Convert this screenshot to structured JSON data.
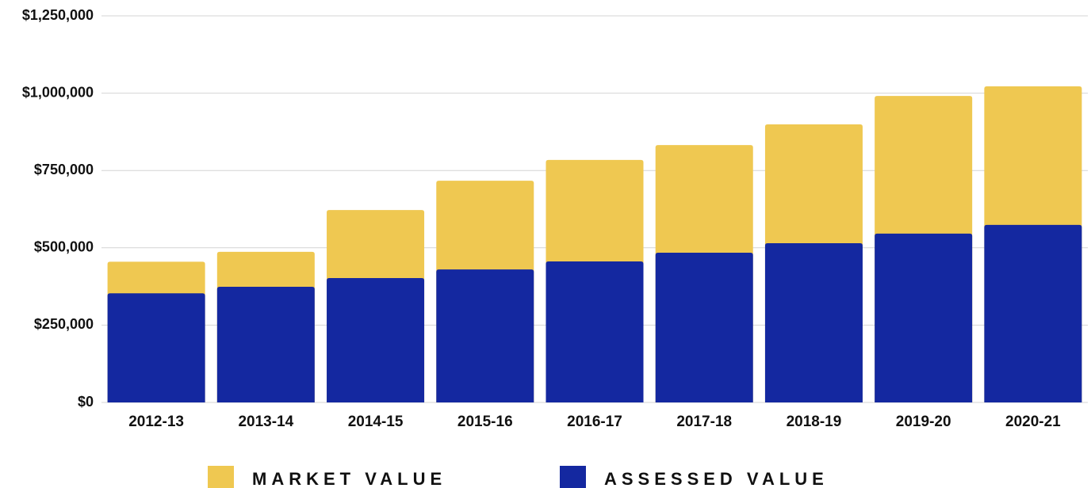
{
  "chart_data": {
    "type": "bar",
    "overlap": true,
    "categories": [
      "2012-13",
      "2013-14",
      "2014-15",
      "2015-16",
      "2016-17",
      "2017-18",
      "2018-19",
      "2019-20",
      "2020-21"
    ],
    "series": [
      {
        "name": "MARKET VALUE",
        "color": "#efc851",
        "values": [
          455000,
          487000,
          622000,
          717000,
          784000,
          832000,
          899000,
          991000,
          1022000
        ]
      },
      {
        "name": "ASSESSED VALUE",
        "color": "#1428a0",
        "values": [
          353000,
          374000,
          402000,
          430000,
          456000,
          484000,
          515000,
          546000,
          574000
        ]
      }
    ],
    "ylim": [
      0,
      1250000
    ],
    "yticks": [
      {
        "value": 0,
        "label": "$0"
      },
      {
        "value": 250000,
        "label": "$250,000"
      },
      {
        "value": 500000,
        "label": "$500,000"
      },
      {
        "value": 750000,
        "label": "$750,000"
      },
      {
        "value": 1000000,
        "label": "$1,000,000"
      },
      {
        "value": 1250000,
        "label": "$1,250,000"
      }
    ],
    "grid": true
  }
}
